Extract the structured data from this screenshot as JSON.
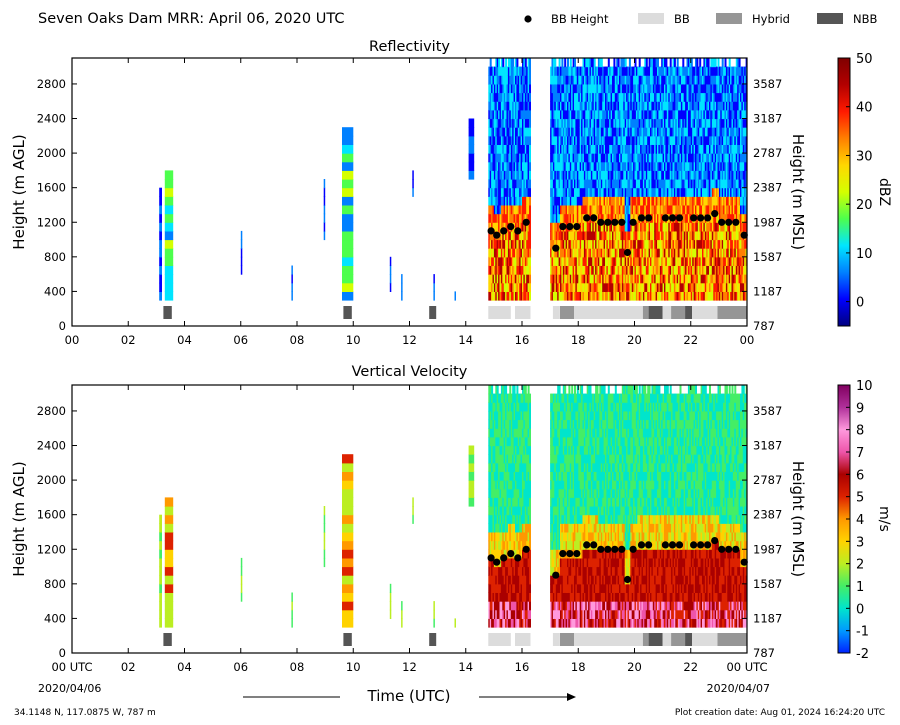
{
  "header": {
    "title": "Seven Oaks Dam MRR:  April 06, 2020 UTC",
    "legend": [
      {
        "label": "BB Height",
        "kind": "dot",
        "color": "#000000"
      },
      {
        "label": "BB",
        "kind": "box",
        "color": "#dcdcdc"
      },
      {
        "label": "Hybrid",
        "kind": "box",
        "color": "#969696"
      },
      {
        "label": "NBB",
        "kind": "box",
        "color": "#555555"
      }
    ]
  },
  "footer": {
    "coords": "34.1148 N, 117.0875 W, 787 m",
    "creation": "Plot creation date: Aug 01, 2024 16:24:20 UTC",
    "xlabel": "Time (UTC)"
  },
  "chart_data": [
    {
      "type": "heatmap",
      "title": "Reflectivity",
      "ylabel": "Height (m AGL)",
      "y2label": "Height (m MSL)",
      "xlim": [
        0,
        24
      ],
      "ylim": [
        0,
        3100
      ],
      "x_ticks": [
        "00",
        "02",
        "04",
        "06",
        "08",
        "10",
        "12",
        "14",
        "16",
        "18",
        "20",
        "22",
        "00"
      ],
      "x_tick_values": [
        0,
        2,
        4,
        6,
        8,
        10,
        12,
        14,
        16,
        18,
        20,
        22,
        24
      ],
      "y_ticks": [
        0,
        400,
        800,
        1200,
        1600,
        2000,
        2400,
        2800
      ],
      "y2_ticks": [
        "787",
        "1187",
        "1587",
        "1987",
        "2387",
        "2787",
        "3187",
        "3587"
      ],
      "colorbar": {
        "label": "dBZ",
        "min": -5,
        "max": 50,
        "ticks": [
          0,
          10,
          20,
          30,
          40,
          50
        ],
        "colors": [
          "#00007f",
          "#0000ff",
          "#0080ff",
          "#00e5ff",
          "#4dff4d",
          "#d4ff00",
          "#ffd700",
          "#ff7f00",
          "#ff1a00",
          "#b30000",
          "#7f0000"
        ]
      }
    },
    {
      "type": "heatmap",
      "title": "Vertical Velocity",
      "ylabel": "Height (m AGL)",
      "y2label": "Height (m MSL)",
      "xlim": [
        0,
        24
      ],
      "ylim": [
        0,
        3100
      ],
      "x_ticks": [
        "00 UTC",
        "02",
        "04",
        "06",
        "08",
        "10",
        "12",
        "14",
        "16",
        "18",
        "20",
        "22",
        "00 UTC"
      ],
      "x_tick_values": [
        0,
        2,
        4,
        6,
        8,
        10,
        12,
        14,
        16,
        18,
        20,
        22,
        24
      ],
      "x_date_left": "2020/04/06",
      "x_date_right": "2020/04/07",
      "y_ticks": [
        0,
        400,
        800,
        1200,
        1600,
        2000,
        2400,
        2800
      ],
      "y2_ticks": [
        "787",
        "1187",
        "1587",
        "1987",
        "2387",
        "2787",
        "3187",
        "3587"
      ],
      "colorbar": {
        "label": "m/s",
        "min": -2,
        "max": 10,
        "ticks": [
          -2,
          -1,
          0,
          1,
          2,
          3,
          4,
          5,
          6,
          7,
          8,
          9,
          10
        ],
        "colors": [
          "#0022ff",
          "#0099ff",
          "#00e5cc",
          "#44ee66",
          "#bbee22",
          "#ffd200",
          "#ff9900",
          "#dd2200",
          "#aa0000",
          "#ee55aa",
          "#ff99dd",
          "#b0309a",
          "#800060"
        ]
      }
    }
  ],
  "bright_band": {
    "bb_height_points": [
      [
        14.9,
        1100
      ],
      [
        15.1,
        1050
      ],
      [
        15.35,
        1100
      ],
      [
        15.6,
        1150
      ],
      [
        15.85,
        1100
      ],
      [
        16.15,
        1200
      ],
      [
        17.2,
        900
      ],
      [
        17.45,
        1150
      ],
      [
        17.7,
        1150
      ],
      [
        17.95,
        1150
      ],
      [
        18.3,
        1250
      ],
      [
        18.55,
        1250
      ],
      [
        18.8,
        1200
      ],
      [
        19.05,
        1200
      ],
      [
        19.3,
        1200
      ],
      [
        19.55,
        1200
      ],
      [
        19.75,
        850
      ],
      [
        19.95,
        1200
      ],
      [
        20.25,
        1250
      ],
      [
        20.5,
        1250
      ],
      [
        21.1,
        1250
      ],
      [
        21.35,
        1250
      ],
      [
        21.6,
        1250
      ],
      [
        22.1,
        1250
      ],
      [
        22.35,
        1250
      ],
      [
        22.6,
        1250
      ],
      [
        22.85,
        1300
      ],
      [
        23.1,
        1200
      ],
      [
        23.35,
        1200
      ],
      [
        23.6,
        1200
      ],
      [
        23.9,
        1050
      ]
    ],
    "segments": [
      {
        "start": 3.25,
        "end": 3.55,
        "class": "NBB"
      },
      {
        "start": 9.65,
        "end": 9.95,
        "class": "NBB"
      },
      {
        "start": 12.7,
        "end": 12.95,
        "class": "NBB"
      },
      {
        "start": 14.8,
        "end": 15.6,
        "class": "BB"
      },
      {
        "start": 15.75,
        "end": 16.3,
        "class": "BB"
      },
      {
        "start": 17.1,
        "end": 17.35,
        "class": "BB"
      },
      {
        "start": 17.35,
        "end": 17.85,
        "class": "Hybrid"
      },
      {
        "start": 17.85,
        "end": 20.3,
        "class": "BB"
      },
      {
        "start": 20.3,
        "end": 20.5,
        "class": "Hybrid"
      },
      {
        "start": 20.5,
        "end": 21.0,
        "class": "NBB"
      },
      {
        "start": 21.0,
        "end": 21.3,
        "class": "BB"
      },
      {
        "start": 21.3,
        "end": 21.8,
        "class": "Hybrid"
      },
      {
        "start": 21.8,
        "end": 22.05,
        "class": "NBB"
      },
      {
        "start": 22.05,
        "end": 22.95,
        "class": "BB"
      },
      {
        "start": 22.95,
        "end": 24.0,
        "class": "Hybrid"
      }
    ]
  }
}
